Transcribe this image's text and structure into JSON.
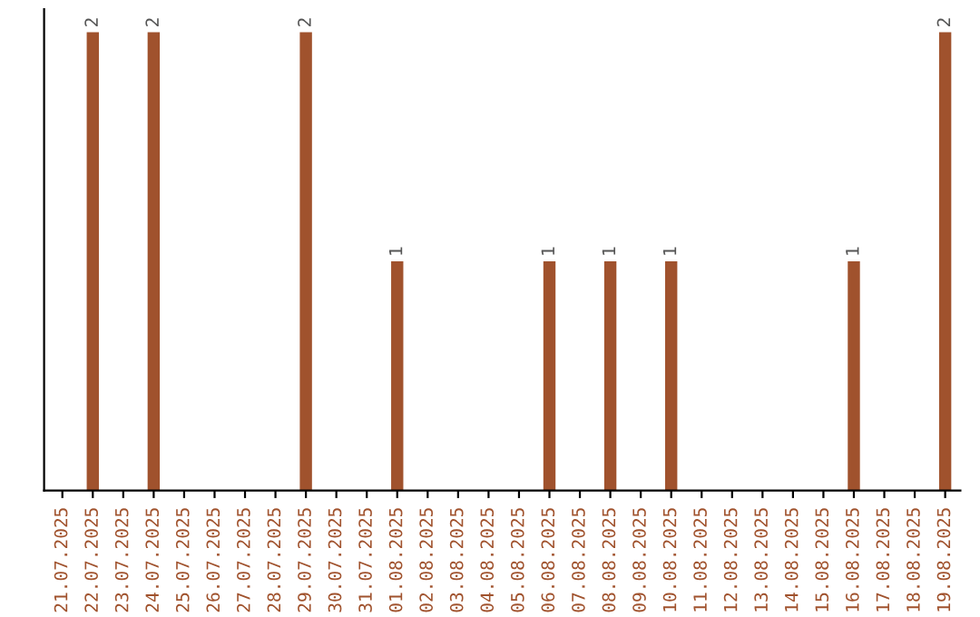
{
  "chart_data": {
    "type": "bar",
    "categories": [
      "21.07.2025",
      "22.07.2025",
      "23.07.2025",
      "24.07.2025",
      "25.07.2025",
      "26.07.2025",
      "27.07.2025",
      "28.07.2025",
      "29.07.2025",
      "30.07.2025",
      "31.07.2025",
      "01.08.2025",
      "02.08.2025",
      "03.08.2025",
      "04.08.2025",
      "05.08.2025",
      "06.08.2025",
      "07.08.2025",
      "08.08.2025",
      "09.08.2025",
      "10.08.2025",
      "11.08.2025",
      "12.08.2025",
      "13.08.2025",
      "14.08.2025",
      "15.08.2025",
      "16.08.2025",
      "17.08.2025",
      "18.08.2025",
      "19.08.2025"
    ],
    "values": [
      0,
      2,
      0,
      2,
      0,
      0,
      0,
      0,
      2,
      0,
      0,
      1,
      0,
      0,
      0,
      0,
      1,
      0,
      1,
      0,
      1,
      0,
      0,
      0,
      0,
      0,
      1,
      0,
      0,
      2
    ],
    "value_labels": [
      null,
      "2",
      null,
      "2",
      null,
      null,
      null,
      null,
      "2",
      null,
      null,
      "1",
      null,
      null,
      null,
      null,
      "1",
      null,
      "1",
      null,
      "1",
      null,
      null,
      null,
      null,
      null,
      "1",
      null,
      null,
      "2"
    ],
    "color": "#a0522d",
    "grid": false,
    "legend": false
  }
}
